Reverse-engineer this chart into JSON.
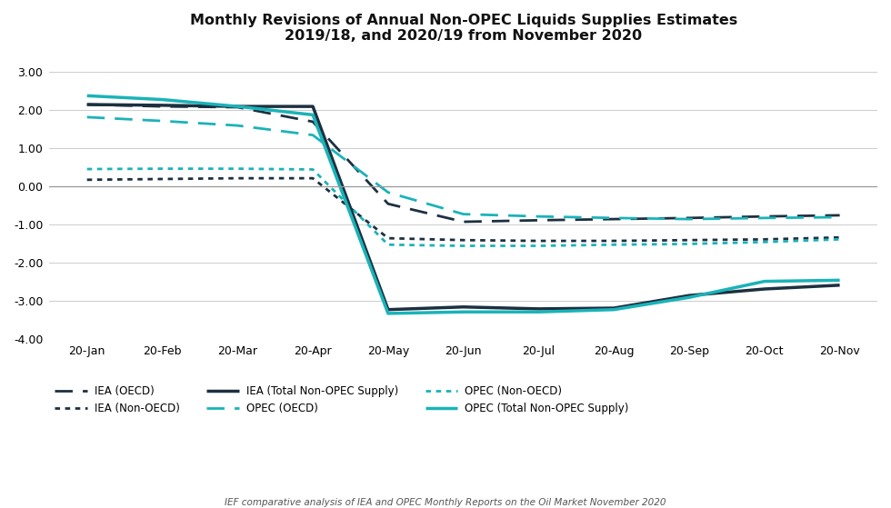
{
  "title_line1": "Monthly Revisions of Annual Non-OPEC Liquids Supplies Estimates",
  "title_line2": "2019/18, and 2020/19 from November 2020",
  "footnote": "IEF comparative analysis of IEA and OPEC Monthly Reports on the Oil Market November 2020",
  "x_labels": [
    "20-Jan",
    "20-Feb",
    "20-Mar",
    "20-Apr",
    "20-May",
    "20-Jun",
    "20-Jul",
    "20-Aug",
    "20-Sep",
    "20-Oct",
    "20-Nov"
  ],
  "ylim": [
    -4.0,
    3.5
  ],
  "yticks": [
    -4.0,
    -3.0,
    -2.0,
    -1.0,
    0.0,
    1.0,
    2.0,
    3.0
  ],
  "series": [
    {
      "key": "IEA_OECD",
      "label": "IEA (OECD)",
      "color": "#1c3040",
      "linestyle": "dashed",
      "linewidth": 2.0,
      "dash_pattern": [
        7,
        4
      ],
      "data": [
        2.15,
        2.1,
        2.08,
        1.7,
        -0.45,
        -0.92,
        -0.88,
        -0.85,
        -0.82,
        -0.78,
        -0.75
      ]
    },
    {
      "key": "OPEC_OECD",
      "label": "OPEC (OECD)",
      "color": "#1ab3b8",
      "linestyle": "dashed",
      "linewidth": 2.0,
      "dash_pattern": [
        7,
        4
      ],
      "data": [
        1.82,
        1.72,
        1.6,
        1.35,
        -0.15,
        -0.72,
        -0.78,
        -0.82,
        -0.85,
        -0.82,
        -0.8
      ]
    },
    {
      "key": "IEA_NonOECD",
      "label": "IEA (Non-OECD)",
      "color": "#1c3040",
      "linestyle": "dotted",
      "linewidth": 2.0,
      "dash_pattern": [
        2,
        2
      ],
      "data": [
        0.18,
        0.2,
        0.22,
        0.22,
        -1.35,
        -1.4,
        -1.42,
        -1.42,
        -1.4,
        -1.38,
        -1.33
      ]
    },
    {
      "key": "OPEC_NonOECD",
      "label": "OPEC (Non-OECD)",
      "color": "#1ab3b8",
      "linestyle": "dotted",
      "linewidth": 2.0,
      "dash_pattern": [
        2,
        2
      ],
      "data": [
        0.46,
        0.47,
        0.47,
        0.45,
        -1.52,
        -1.55,
        -1.55,
        -1.52,
        -1.5,
        -1.45,
        -1.38
      ]
    },
    {
      "key": "IEA_Total",
      "label": "IEA (Total Non-OPEC Supply)",
      "color": "#1c3040",
      "linestyle": "solid",
      "linewidth": 2.5,
      "dash_pattern": null,
      "data": [
        2.15,
        2.13,
        2.1,
        2.1,
        -3.22,
        -3.15,
        -3.2,
        -3.18,
        -2.85,
        -2.68,
        -2.58
      ]
    },
    {
      "key": "OPEC_Total",
      "label": "OPEC (Total Non-OPEC Supply)",
      "color": "#1ab3b8",
      "linestyle": "solid",
      "linewidth": 2.5,
      "dash_pattern": null,
      "data": [
        2.38,
        2.28,
        2.1,
        1.88,
        -3.32,
        -3.28,
        -3.28,
        -3.22,
        -2.9,
        -2.48,
        -2.45
      ]
    }
  ],
  "legend_order": [
    0,
    2,
    4,
    1,
    3,
    5
  ],
  "background_color": "#ffffff",
  "grid_color": "#cccccc",
  "zero_line_color": "#999999",
  "spine_color": "#cccccc"
}
